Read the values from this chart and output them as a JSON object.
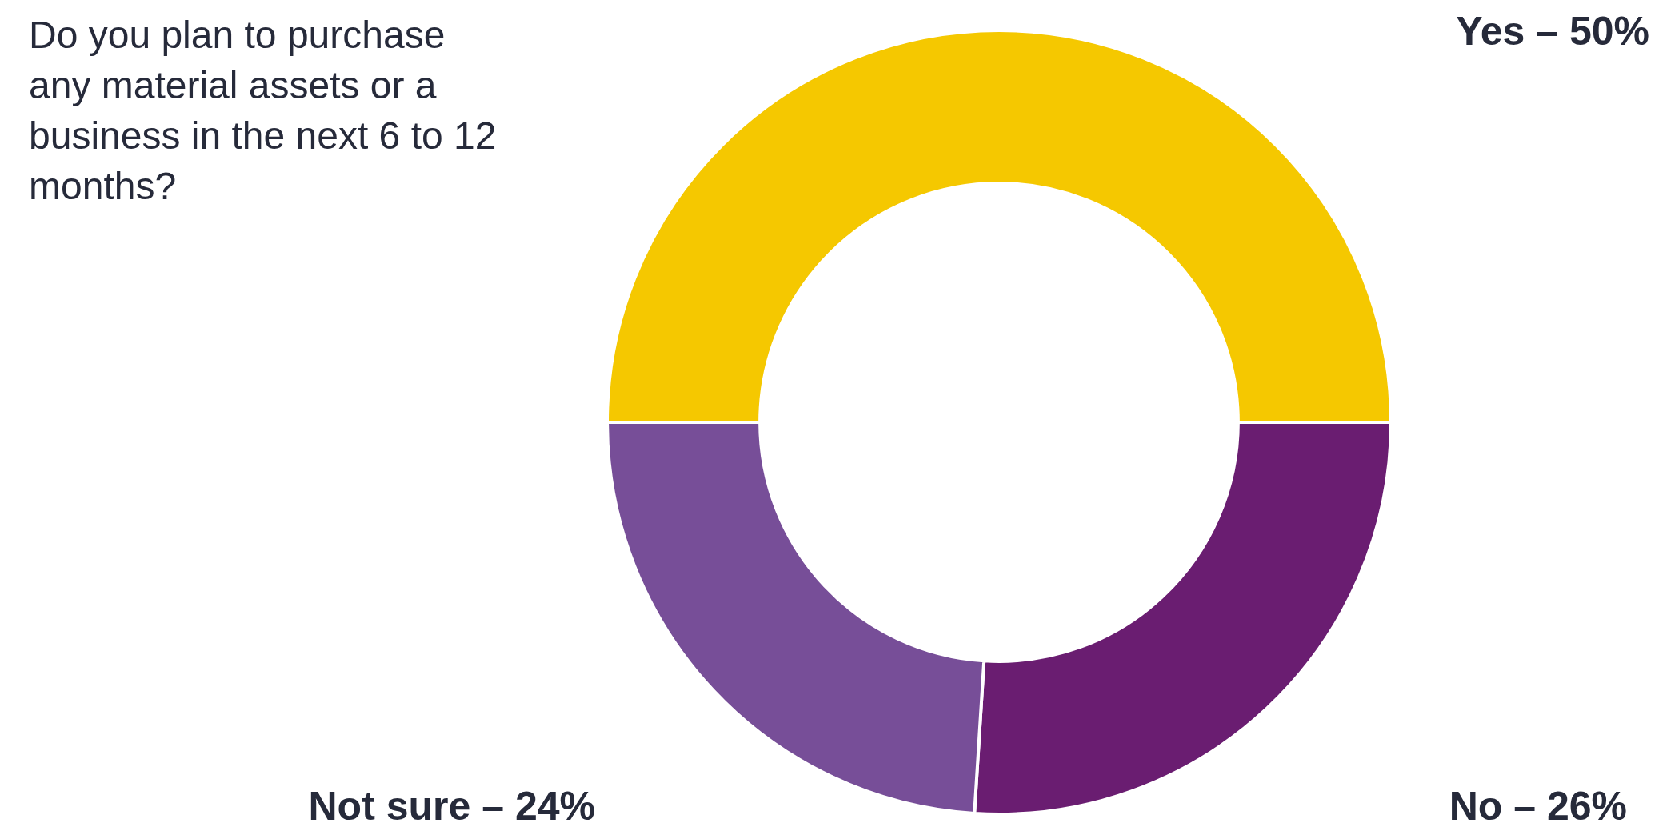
{
  "chart_data": {
    "type": "donut",
    "title": "Do you plan to purchase any material assets or a business in the next 6 to 12 months?",
    "categories": [
      "Yes – 50%",
      "No – 26%",
      "Not sure – 24%"
    ],
    "values": [
      50,
      26,
      24
    ],
    "colors": [
      "#f5c800",
      "#6a1d71",
      "#774e98"
    ]
  }
}
